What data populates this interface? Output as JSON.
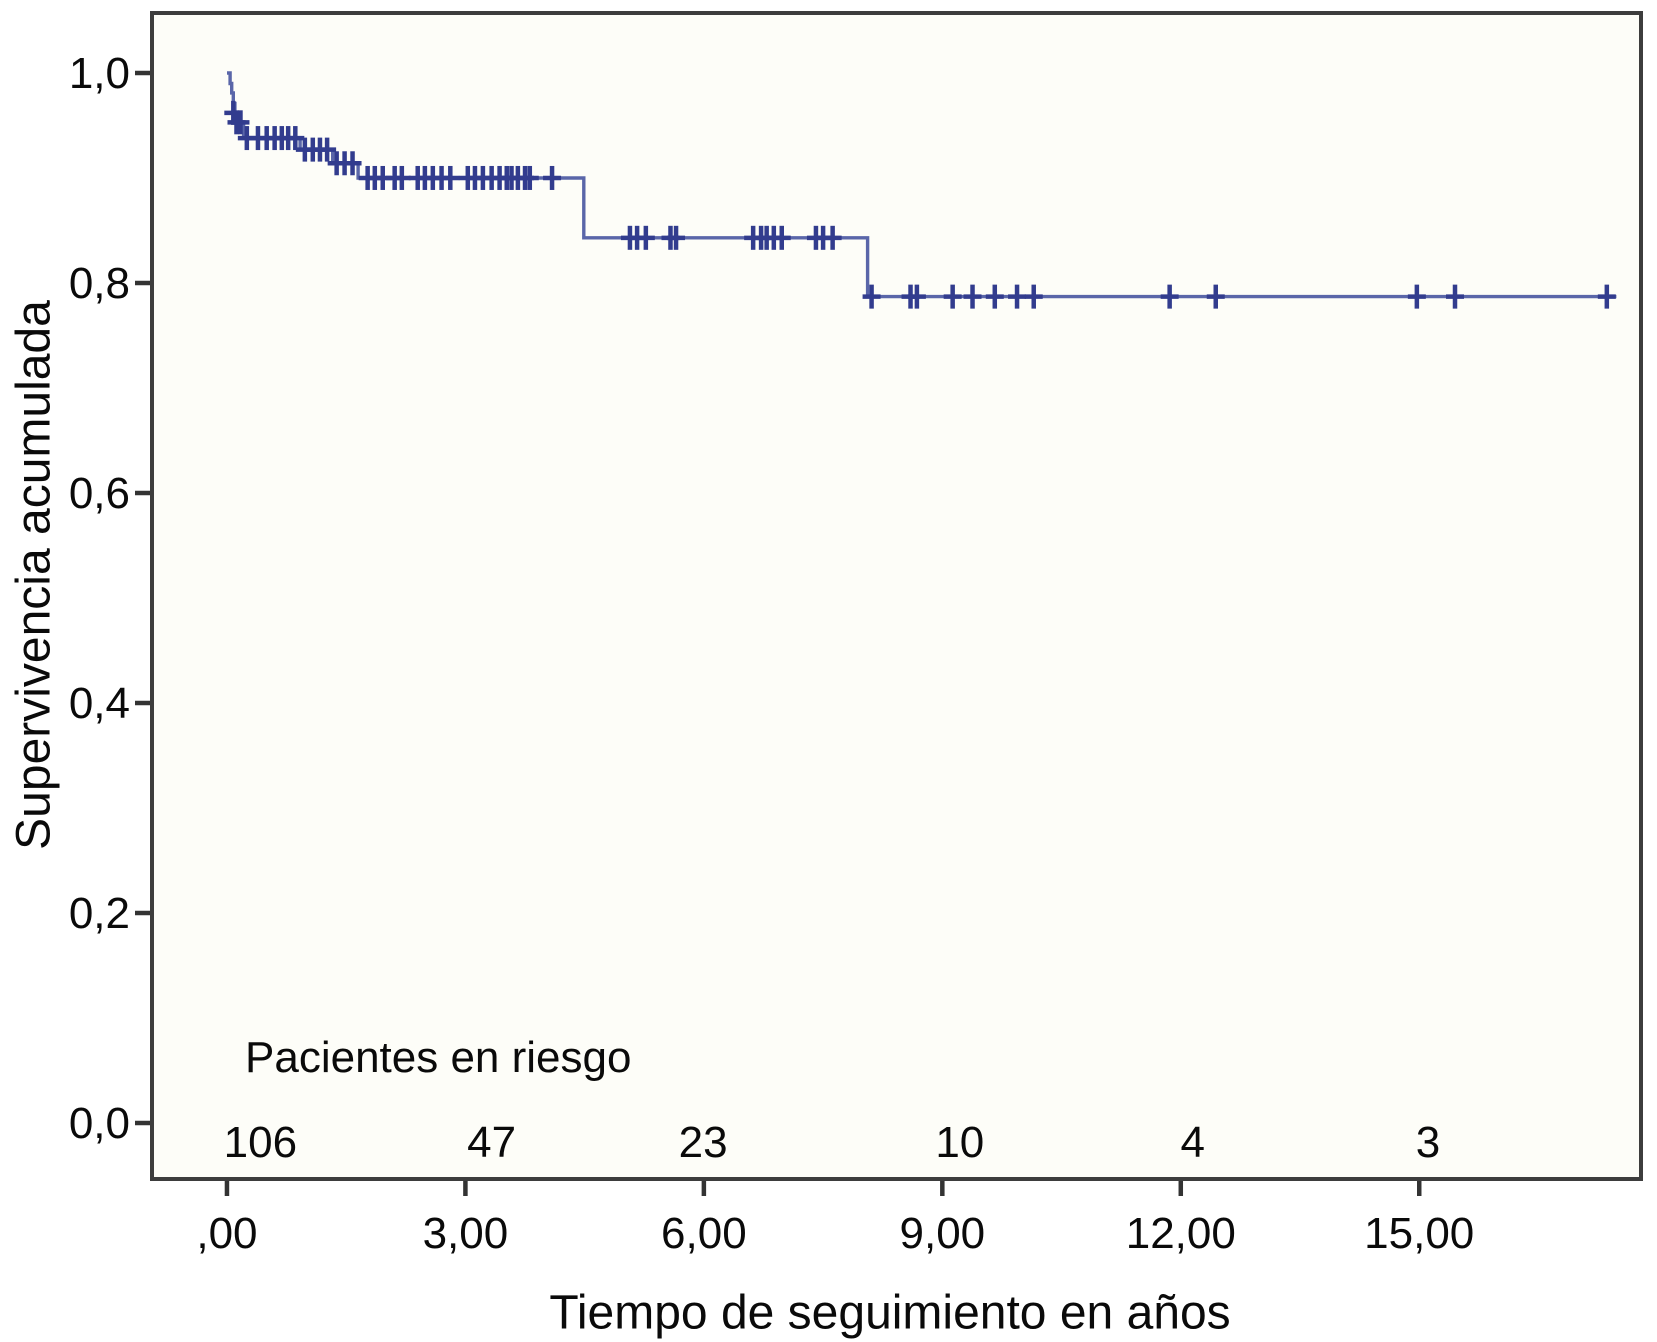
{
  "chart_data": {
    "type": "line",
    "subtype": "kaplan-meier-step",
    "title": "",
    "xlabel": "Tiempo de seguimiento en años",
    "ylabel": "Supervivencia acumulada",
    "xlim": [
      -0.943,
      17.79
    ],
    "ylim": [
      -0.0533,
      1.0571
    ],
    "grid": false,
    "legend": "none",
    "x_ticks": [
      {
        "value": 0,
        "label": ",00"
      },
      {
        "value": 3,
        "label": "3,00"
      },
      {
        "value": 6,
        "label": "6,00"
      },
      {
        "value": 9,
        "label": "9,00"
      },
      {
        "value": 12,
        "label": "12,00"
      },
      {
        "value": 15,
        "label": "15,00"
      }
    ],
    "y_ticks": [
      {
        "value": 0.0,
        "label": "0,0"
      },
      {
        "value": 0.2,
        "label": "0,2"
      },
      {
        "value": 0.4,
        "label": "0,4"
      },
      {
        "value": 0.6,
        "label": "0,6"
      },
      {
        "value": 0.8,
        "label": "0,8"
      },
      {
        "value": 1.0,
        "label": "1,0"
      }
    ],
    "series": [
      {
        "name": "Supervivencia acumulada",
        "color": "#5a66a9",
        "censor_color": "#323c8e",
        "steps": [
          [
            0.0,
            1.0
          ],
          [
            0.04,
            0.99
          ],
          [
            0.06,
            0.981
          ],
          [
            0.08,
            0.971
          ],
          [
            0.1,
            0.962
          ],
          [
            0.13,
            0.953
          ],
          [
            0.21,
            0.938
          ],
          [
            0.92,
            0.927
          ],
          [
            1.33,
            0.914
          ],
          [
            1.65,
            0.9
          ],
          [
            4.49,
            0.843
          ],
          [
            8.06,
            0.787
          ]
        ],
        "end_time": 17.48,
        "censors": [
          [
            0.08,
            0.962
          ],
          [
            0.12,
            0.953
          ],
          [
            0.17,
            0.953
          ],
          [
            0.25,
            0.938
          ],
          [
            0.39,
            0.938
          ],
          [
            0.5,
            0.938
          ],
          [
            0.6,
            0.938
          ],
          [
            0.69,
            0.938
          ],
          [
            0.77,
            0.938
          ],
          [
            0.86,
            0.938
          ],
          [
            0.98,
            0.927
          ],
          [
            1.08,
            0.927
          ],
          [
            1.17,
            0.927
          ],
          [
            1.26,
            0.927
          ],
          [
            1.38,
            0.914
          ],
          [
            1.48,
            0.914
          ],
          [
            1.58,
            0.914
          ],
          [
            1.77,
            0.9
          ],
          [
            1.86,
            0.9
          ],
          [
            1.96,
            0.9
          ],
          [
            2.11,
            0.9
          ],
          [
            2.2,
            0.9
          ],
          [
            2.4,
            0.9
          ],
          [
            2.49,
            0.9
          ],
          [
            2.59,
            0.9
          ],
          [
            2.7,
            0.9
          ],
          [
            2.81,
            0.9
          ],
          [
            3.03,
            0.9
          ],
          [
            3.12,
            0.9
          ],
          [
            3.22,
            0.9
          ],
          [
            3.33,
            0.9
          ],
          [
            3.43,
            0.9
          ],
          [
            3.52,
            0.9
          ],
          [
            3.58,
            0.9
          ],
          [
            3.66,
            0.9
          ],
          [
            3.75,
            0.9
          ],
          [
            3.81,
            0.9
          ],
          [
            4.09,
            0.9
          ],
          [
            5.07,
            0.843
          ],
          [
            5.16,
            0.843
          ],
          [
            5.27,
            0.843
          ],
          [
            5.58,
            0.843
          ],
          [
            5.65,
            0.843
          ],
          [
            6.62,
            0.843
          ],
          [
            6.72,
            0.843
          ],
          [
            6.79,
            0.843
          ],
          [
            6.88,
            0.843
          ],
          [
            6.98,
            0.843
          ],
          [
            7.41,
            0.843
          ],
          [
            7.5,
            0.843
          ],
          [
            7.62,
            0.843
          ],
          [
            8.11,
            0.787
          ],
          [
            8.6,
            0.787
          ],
          [
            8.68,
            0.787
          ],
          [
            9.13,
            0.787
          ],
          [
            9.38,
            0.787
          ],
          [
            9.66,
            0.787
          ],
          [
            9.94,
            0.787
          ],
          [
            10.15,
            0.787
          ],
          [
            11.86,
            0.787
          ],
          [
            12.44,
            0.787
          ],
          [
            14.97,
            0.787
          ],
          [
            15.45,
            0.787
          ],
          [
            17.36,
            0.787
          ]
        ]
      }
    ],
    "risk_table": {
      "label": "Pacientes en riesgo",
      "counts": [
        {
          "time": 0.42,
          "label": "106"
        },
        {
          "time": 3.33,
          "label": "47"
        },
        {
          "time": 5.99,
          "label": "23"
        },
        {
          "time": 9.22,
          "label": "10"
        },
        {
          "time": 12.15,
          "label": "4"
        },
        {
          "time": 15.11,
          "label": "3"
        }
      ]
    }
  },
  "colors": {
    "axis": "#3d3d3d",
    "tick": "#333333",
    "text": "#0a0a0a",
    "plot_bg": "#fdfdf8",
    "page_bg": "#ffffff",
    "curve": "#5a66a9",
    "censor": "#323c8e"
  }
}
